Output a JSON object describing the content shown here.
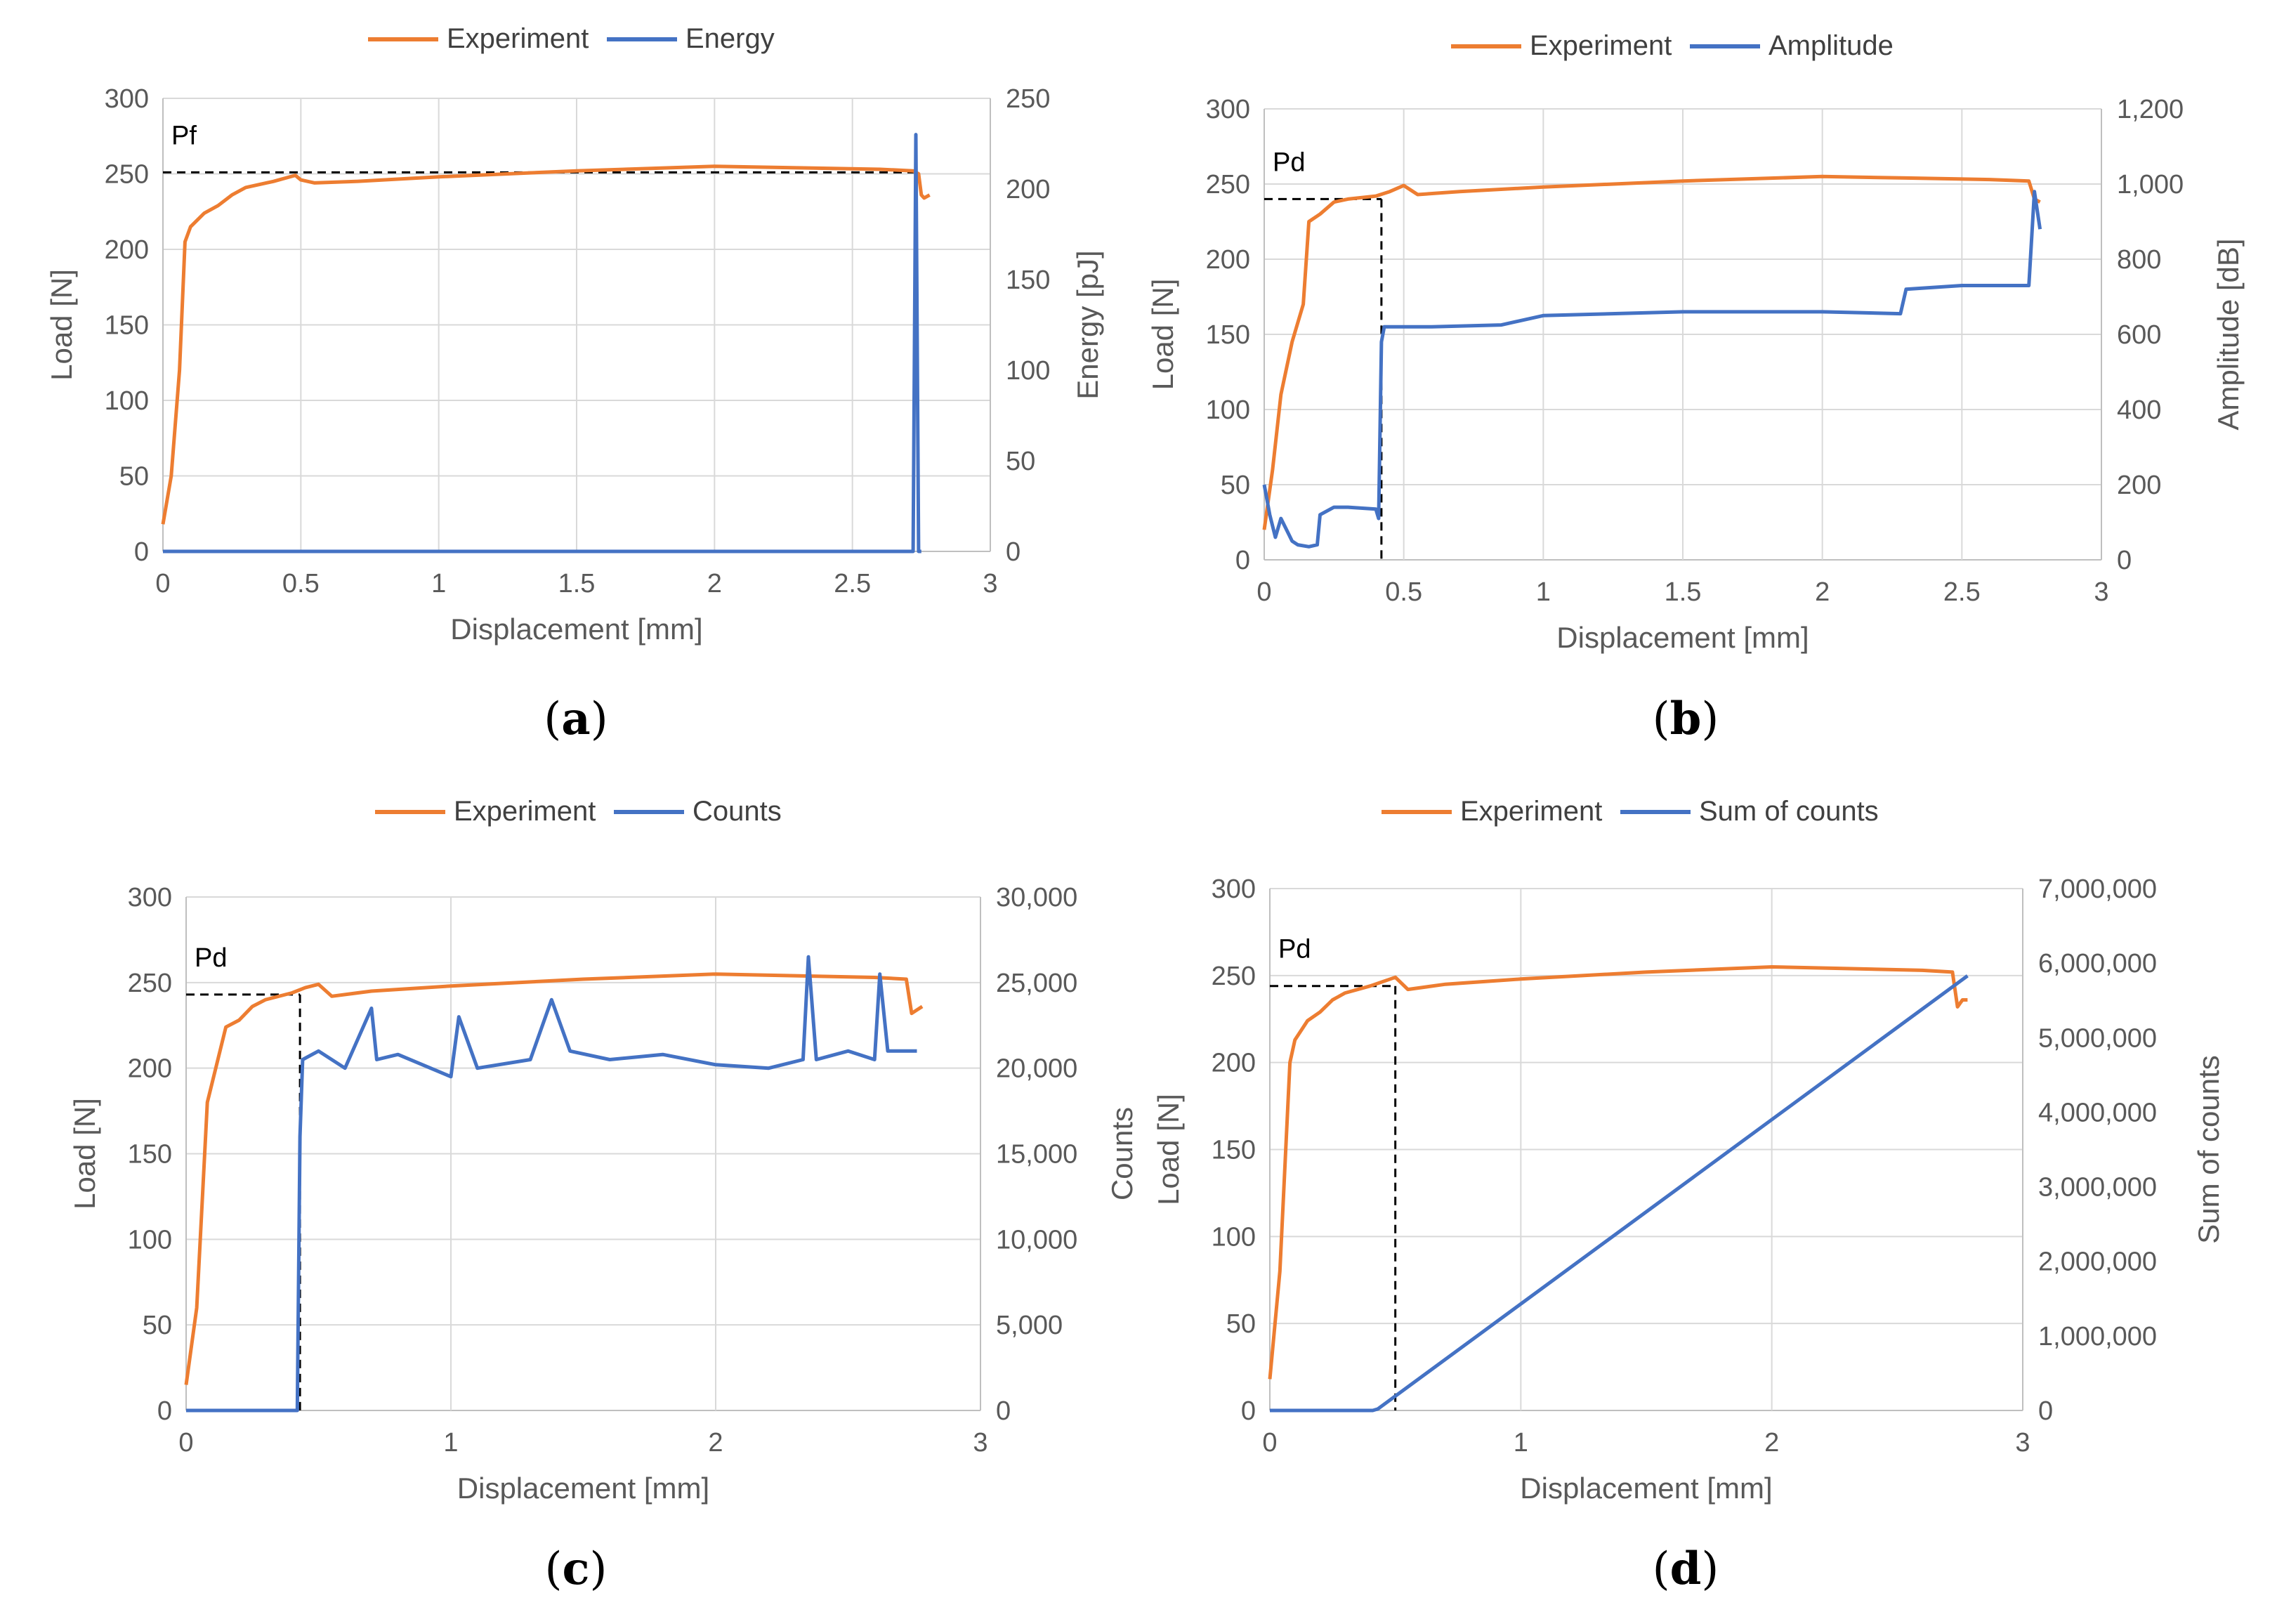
{
  "colors": {
    "experiment": "#ED7D31",
    "ae": "#4472C4"
  },
  "chart_data": [
    {
      "type": "line",
      "panel_caption_letter": "a",
      "legend": [
        "Experiment",
        "Energy"
      ],
      "xlabel": "Displacement [mm]",
      "ylabel": "Load [N]",
      "y2label": "Energy [pJ]",
      "xlim": [
        0,
        3
      ],
      "ylim": [
        0,
        300
      ],
      "y2lim": [
        0,
        250
      ],
      "xticks": [
        "0",
        "0.5",
        "1",
        "1.5",
        "2",
        "2.5",
        "3"
      ],
      "yticks": [
        "0",
        "50",
        "100",
        "150",
        "200",
        "250",
        "300"
      ],
      "y2ticks": [
        "0",
        "50",
        "100",
        "150",
        "200",
        "250"
      ],
      "annotation": {
        "label": "Pf",
        "load": 251,
        "x_end": 2.75
      },
      "series": [
        {
          "name": "Experiment",
          "axis": "left",
          "x": [
            0,
            0.03,
            0.06,
            0.08,
            0.1,
            0.15,
            0.2,
            0.25,
            0.3,
            0.4,
            0.48,
            0.5,
            0.55,
            0.7,
            1.0,
            1.5,
            2.0,
            2.3,
            2.6,
            2.72,
            2.74,
            2.75,
            2.76,
            2.78
          ],
          "y": [
            18,
            50,
            120,
            205,
            215,
            224,
            229,
            236,
            241,
            245,
            249,
            246,
            244,
            245,
            248,
            252,
            255,
            254,
            253,
            252,
            250,
            236,
            234,
            236
          ]
        },
        {
          "name": "Energy",
          "axis": "right",
          "x": [
            0,
            2.72,
            2.73,
            2.74,
            2.745,
            2.75
          ],
          "y": [
            0,
            0,
            230,
            0,
            0,
            0
          ]
        }
      ]
    },
    {
      "type": "line",
      "panel_caption_letter": "b",
      "legend": [
        "Experiment",
        "Amplitude"
      ],
      "xlabel": "Displacement [mm]",
      "ylabel": "Load [N]",
      "y2label": "Amplitude [dB]",
      "xlim": [
        0,
        3
      ],
      "ylim": [
        0,
        300
      ],
      "y2lim": [
        0,
        1200
      ],
      "xticks": [
        "0",
        "0.5",
        "1",
        "1.5",
        "2",
        "2.5",
        "3"
      ],
      "yticks": [
        "0",
        "50",
        "100",
        "150",
        "200",
        "250",
        "300"
      ],
      "y2ticks": [
        "0",
        "200",
        "400",
        "600",
        "800",
        "1,000",
        "1,200"
      ],
      "annotation": {
        "label": "Pd",
        "load": 240,
        "x_end": 0.42
      },
      "series": [
        {
          "name": "Experiment",
          "axis": "left",
          "x": [
            0,
            0.03,
            0.06,
            0.1,
            0.14,
            0.16,
            0.2,
            0.25,
            0.3,
            0.4,
            0.45,
            0.5,
            0.55,
            0.7,
            1.0,
            1.5,
            2.0,
            2.3,
            2.6,
            2.74,
            2.76,
            2.78
          ],
          "y": [
            20,
            60,
            110,
            145,
            170,
            225,
            230,
            238,
            240,
            242,
            245,
            249,
            243,
            245,
            248,
            252,
            255,
            254,
            253,
            252,
            240,
            238
          ]
        },
        {
          "name": "Amplitude",
          "axis": "right",
          "x": [
            0,
            0.02,
            0.04,
            0.06,
            0.08,
            0.1,
            0.12,
            0.16,
            0.19,
            0.2,
            0.25,
            0.3,
            0.4,
            0.41,
            0.42,
            0.43,
            0.6,
            0.85,
            1.0,
            1.5,
            2.0,
            2.28,
            2.3,
            2.5,
            2.74,
            2.76,
            2.78
          ],
          "y": [
            200,
            120,
            60,
            110,
            80,
            50,
            40,
            35,
            40,
            120,
            140,
            140,
            135,
            110,
            580,
            620,
            620,
            625,
            650,
            660,
            660,
            655,
            720,
            730,
            730,
            980,
            880
          ]
        }
      ]
    },
    {
      "type": "line",
      "panel_caption_letter": "c",
      "legend": [
        "Experiment",
        "Counts"
      ],
      "xlabel": "Displacement [mm]",
      "ylabel": "Load [N]",
      "y2label": "Counts",
      "xlim": [
        0,
        3
      ],
      "ylim": [
        0,
        300
      ],
      "y2lim": [
        0,
        30000
      ],
      "xticks": [
        "0",
        "1",
        "2",
        "3"
      ],
      "yticks": [
        "0",
        "50",
        "100",
        "150",
        "200",
        "250",
        "300"
      ],
      "y2ticks": [
        "0",
        "5,000",
        "10,000",
        "15,000",
        "20,000",
        "25,000",
        "30,000"
      ],
      "annotation": {
        "label": "Pd",
        "load": 243,
        "x_end": 0.43
      },
      "series": [
        {
          "name": "Experiment",
          "axis": "left",
          "x": [
            0,
            0.04,
            0.08,
            0.12,
            0.15,
            0.2,
            0.25,
            0.3,
            0.4,
            0.45,
            0.5,
            0.55,
            0.7,
            1.0,
            1.5,
            2.0,
            2.3,
            2.6,
            2.72,
            2.74,
            2.76,
            2.78
          ],
          "y": [
            15,
            60,
            180,
            205,
            224,
            228,
            236,
            240,
            244,
            247,
            249,
            242,
            245,
            248,
            252,
            255,
            254,
            253,
            252,
            232,
            234,
            236
          ]
        },
        {
          "name": "Counts",
          "axis": "right",
          "x": [
            0,
            0.42,
            0.43,
            0.44,
            0.5,
            0.6,
            0.7,
            0.72,
            0.8,
            1.0,
            1.03,
            1.1,
            1.3,
            1.38,
            1.45,
            1.6,
            1.8,
            2.0,
            2.2,
            2.33,
            2.35,
            2.38,
            2.5,
            2.6,
            2.62,
            2.65,
            2.7,
            2.76
          ],
          "y": [
            0,
            0,
            16000,
            20500,
            21000,
            20000,
            23500,
            20500,
            20800,
            19500,
            23000,
            20000,
            20500,
            24000,
            21000,
            20500,
            20800,
            20200,
            20000,
            20500,
            26500,
            20500,
            21000,
            20500,
            25500,
            21000,
            21000,
            21000
          ]
        }
      ]
    },
    {
      "type": "line",
      "panel_caption_letter": "d",
      "legend": [
        "Experiment",
        "Sum of counts"
      ],
      "xlabel": "Displacement [mm]",
      "ylabel": "Load [N]",
      "y2label": "Sum of counts",
      "xlim": [
        0,
        3
      ],
      "ylim": [
        0,
        300
      ],
      "y2lim": [
        0,
        7000000
      ],
      "xticks": [
        "0",
        "1",
        "2",
        "3"
      ],
      "yticks": [
        "0",
        "50",
        "100",
        "150",
        "200",
        "250",
        "300"
      ],
      "y2ticks": [
        "0",
        "1,000,000",
        "2,000,000",
        "3,000,000",
        "4,000,000",
        "5,000,000",
        "6,000,000",
        "7,000,000"
      ],
      "annotation": {
        "label": "Pd",
        "load": 244,
        "x_end": 0.5
      },
      "series": [
        {
          "name": "Experiment",
          "axis": "left",
          "x": [
            0,
            0.04,
            0.08,
            0.1,
            0.15,
            0.2,
            0.25,
            0.3,
            0.4,
            0.48,
            0.5,
            0.55,
            0.7,
            1.0,
            1.5,
            2.0,
            2.3,
            2.6,
            2.72,
            2.74,
            2.76,
            2.78
          ],
          "y": [
            18,
            80,
            200,
            213,
            224,
            229,
            236,
            240,
            244,
            248,
            249,
            242,
            245,
            248,
            252,
            255,
            254,
            253,
            252,
            232,
            236,
            236
          ]
        },
        {
          "name": "Sum of counts",
          "axis": "right",
          "x": [
            0,
            0.41,
            0.43,
            2.78
          ],
          "y": [
            0,
            0,
            20000,
            5830000
          ]
        }
      ]
    }
  ]
}
